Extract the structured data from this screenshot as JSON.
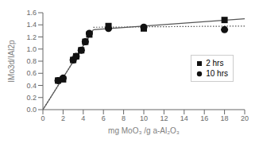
{
  "chart_data": {
    "type": "scatter",
    "xlabel": "mg MoO₃ /g  a-Al₂O₃",
    "ylabel": "IMo3d/IAl2p",
    "xlim": [
      0,
      20
    ],
    "ylim": [
      0.0,
      1.6
    ],
    "xticks": [
      0,
      2,
      4,
      6,
      8,
      10,
      12,
      14,
      16,
      18,
      20
    ],
    "yticks": [
      {
        "value": 0.0,
        "label": "0.0"
      },
      0.2,
      0.4,
      0.6,
      0.8,
      {
        "value": 1.0,
        "label": "1.0"
      },
      1.2,
      1.4,
      1.6
    ],
    "grid": false,
    "legend": "center right",
    "series": [
      {
        "name": "2 hrs",
        "type": "scatter",
        "marker": "square",
        "color": "#111111",
        "x": [
          1.5,
          2.0,
          3.0,
          3.3,
          3.8,
          4.2,
          4.6,
          6.5,
          10.0,
          18.0
        ],
        "values": [
          0.48,
          0.5,
          0.82,
          0.88,
          0.98,
          1.12,
          1.24,
          1.38,
          1.34,
          1.48
        ]
      },
      {
        "name": "10 hrs",
        "type": "scatter",
        "marker": "circle",
        "color": "#111111",
        "x": [
          1.5,
          2.0,
          3.0,
          3.3,
          3.8,
          4.2,
          4.6,
          6.5,
          10.0,
          18.0
        ],
        "values": [
          0.48,
          0.52,
          0.82,
          0.88,
          0.98,
          1.12,
          1.26,
          1.34,
          1.36,
          1.32
        ]
      },
      {
        "type": "line",
        "color": "#555555",
        "line_style": "solid",
        "x": [
          0,
          5.0
        ],
        "values": [
          0.0,
          1.32
        ]
      },
      {
        "type": "line",
        "color": "#555555",
        "line_style": "solid",
        "x": [
          5.0,
          20
        ],
        "values": [
          1.32,
          1.5
        ]
      },
      {
        "type": "line",
        "color": "#555555",
        "line_style": "dotted",
        "x": [
          0,
          5.0
        ],
        "values": [
          0.0,
          1.32
        ]
      },
      {
        "type": "line",
        "color": "#555555",
        "line_style": "dotted",
        "x": [
          5.0,
          20
        ],
        "values": [
          1.36,
          1.38
        ]
      }
    ]
  }
}
